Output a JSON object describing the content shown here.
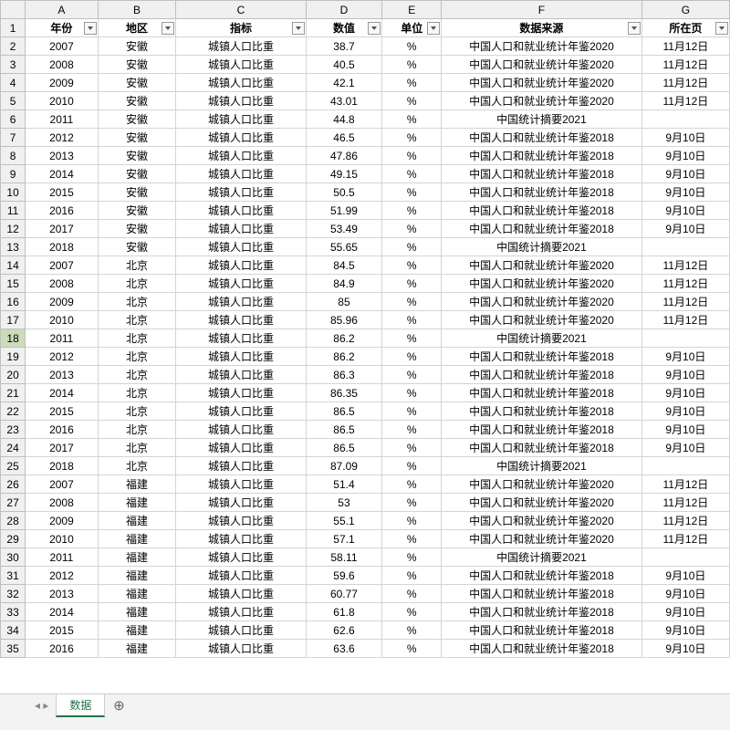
{
  "sheet": {
    "name": "数据",
    "column_letters": [
      "A",
      "B",
      "C",
      "D",
      "E",
      "F",
      "G"
    ],
    "headers": [
      "年份",
      "地区",
      "指标",
      "数值",
      "单位",
      "数据来源",
      "所在页"
    ],
    "selected_row_index": 18,
    "rows": [
      {
        "n": 2,
        "A": "2007",
        "B": "安徽",
        "C": "城镇人口比重",
        "D": "38.7",
        "E": "%",
        "F": "中国人口和就业统计年鉴2020",
        "G": "11月12日"
      },
      {
        "n": 3,
        "A": "2008",
        "B": "安徽",
        "C": "城镇人口比重",
        "D": "40.5",
        "E": "%",
        "F": "中国人口和就业统计年鉴2020",
        "G": "11月12日"
      },
      {
        "n": 4,
        "A": "2009",
        "B": "安徽",
        "C": "城镇人口比重",
        "D": "42.1",
        "E": "%",
        "F": "中国人口和就业统计年鉴2020",
        "G": "11月12日"
      },
      {
        "n": 5,
        "A": "2010",
        "B": "安徽",
        "C": "城镇人口比重",
        "D": "43.01",
        "E": "%",
        "F": "中国人口和就业统计年鉴2020",
        "G": "11月12日"
      },
      {
        "n": 6,
        "A": "2011",
        "B": "安徽",
        "C": "城镇人口比重",
        "D": "44.8",
        "E": "%",
        "F": "中国统计摘要2021",
        "G": ""
      },
      {
        "n": 7,
        "A": "2012",
        "B": "安徽",
        "C": "城镇人口比重",
        "D": "46.5",
        "E": "%",
        "F": "中国人口和就业统计年鉴2018",
        "G": "9月10日"
      },
      {
        "n": 8,
        "A": "2013",
        "B": "安徽",
        "C": "城镇人口比重",
        "D": "47.86",
        "E": "%",
        "F": "中国人口和就业统计年鉴2018",
        "G": "9月10日"
      },
      {
        "n": 9,
        "A": "2014",
        "B": "安徽",
        "C": "城镇人口比重",
        "D": "49.15",
        "E": "%",
        "F": "中国人口和就业统计年鉴2018",
        "G": "9月10日"
      },
      {
        "n": 10,
        "A": "2015",
        "B": "安徽",
        "C": "城镇人口比重",
        "D": "50.5",
        "E": "%",
        "F": "中国人口和就业统计年鉴2018",
        "G": "9月10日"
      },
      {
        "n": 11,
        "A": "2016",
        "B": "安徽",
        "C": "城镇人口比重",
        "D": "51.99",
        "E": "%",
        "F": "中国人口和就业统计年鉴2018",
        "G": "9月10日"
      },
      {
        "n": 12,
        "A": "2017",
        "B": "安徽",
        "C": "城镇人口比重",
        "D": "53.49",
        "E": "%",
        "F": "中国人口和就业统计年鉴2018",
        "G": "9月10日"
      },
      {
        "n": 13,
        "A": "2018",
        "B": "安徽",
        "C": "城镇人口比重",
        "D": "55.65",
        "E": "%",
        "F": "中国统计摘要2021",
        "G": ""
      },
      {
        "n": 14,
        "A": "2007",
        "B": "北京",
        "C": "城镇人口比重",
        "D": "84.5",
        "E": "%",
        "F": "中国人口和就业统计年鉴2020",
        "G": "11月12日"
      },
      {
        "n": 15,
        "A": "2008",
        "B": "北京",
        "C": "城镇人口比重",
        "D": "84.9",
        "E": "%",
        "F": "中国人口和就业统计年鉴2020",
        "G": "11月12日"
      },
      {
        "n": 16,
        "A": "2009",
        "B": "北京",
        "C": "城镇人口比重",
        "D": "85",
        "E": "%",
        "F": "中国人口和就业统计年鉴2020",
        "G": "11月12日"
      },
      {
        "n": 17,
        "A": "2010",
        "B": "北京",
        "C": "城镇人口比重",
        "D": "85.96",
        "E": "%",
        "F": "中国人口和就业统计年鉴2020",
        "G": "11月12日"
      },
      {
        "n": 18,
        "A": "2011",
        "B": "北京",
        "C": "城镇人口比重",
        "D": "86.2",
        "E": "%",
        "F": "中国统计摘要2021",
        "G": ""
      },
      {
        "n": 19,
        "A": "2012",
        "B": "北京",
        "C": "城镇人口比重",
        "D": "86.2",
        "E": "%",
        "F": "中国人口和就业统计年鉴2018",
        "G": "9月10日"
      },
      {
        "n": 20,
        "A": "2013",
        "B": "北京",
        "C": "城镇人口比重",
        "D": "86.3",
        "E": "%",
        "F": "中国人口和就业统计年鉴2018",
        "G": "9月10日"
      },
      {
        "n": 21,
        "A": "2014",
        "B": "北京",
        "C": "城镇人口比重",
        "D": "86.35",
        "E": "%",
        "F": "中国人口和就业统计年鉴2018",
        "G": "9月10日"
      },
      {
        "n": 22,
        "A": "2015",
        "B": "北京",
        "C": "城镇人口比重",
        "D": "86.5",
        "E": "%",
        "F": "中国人口和就业统计年鉴2018",
        "G": "9月10日"
      },
      {
        "n": 23,
        "A": "2016",
        "B": "北京",
        "C": "城镇人口比重",
        "D": "86.5",
        "E": "%",
        "F": "中国人口和就业统计年鉴2018",
        "G": "9月10日"
      },
      {
        "n": 24,
        "A": "2017",
        "B": "北京",
        "C": "城镇人口比重",
        "D": "86.5",
        "E": "%",
        "F": "中国人口和就业统计年鉴2018",
        "G": "9月10日"
      },
      {
        "n": 25,
        "A": "2018",
        "B": "北京",
        "C": "城镇人口比重",
        "D": "87.09",
        "E": "%",
        "F": "中国统计摘要2021",
        "G": ""
      },
      {
        "n": 26,
        "A": "2007",
        "B": "福建",
        "C": "城镇人口比重",
        "D": "51.4",
        "E": "%",
        "F": "中国人口和就业统计年鉴2020",
        "G": "11月12日"
      },
      {
        "n": 27,
        "A": "2008",
        "B": "福建",
        "C": "城镇人口比重",
        "D": "53",
        "E": "%",
        "F": "中国人口和就业统计年鉴2020",
        "G": "11月12日"
      },
      {
        "n": 28,
        "A": "2009",
        "B": "福建",
        "C": "城镇人口比重",
        "D": "55.1",
        "E": "%",
        "F": "中国人口和就业统计年鉴2020",
        "G": "11月12日"
      },
      {
        "n": 29,
        "A": "2010",
        "B": "福建",
        "C": "城镇人口比重",
        "D": "57.1",
        "E": "%",
        "F": "中国人口和就业统计年鉴2020",
        "G": "11月12日"
      },
      {
        "n": 30,
        "A": "2011",
        "B": "福建",
        "C": "城镇人口比重",
        "D": "58.11",
        "E": "%",
        "F": "中国统计摘要2021",
        "G": ""
      },
      {
        "n": 31,
        "A": "2012",
        "B": "福建",
        "C": "城镇人口比重",
        "D": "59.6",
        "E": "%",
        "F": "中国人口和就业统计年鉴2018",
        "G": "9月10日"
      },
      {
        "n": 32,
        "A": "2013",
        "B": "福建",
        "C": "城镇人口比重",
        "D": "60.77",
        "E": "%",
        "F": "中国人口和就业统计年鉴2018",
        "G": "9月10日"
      },
      {
        "n": 33,
        "A": "2014",
        "B": "福建",
        "C": "城镇人口比重",
        "D": "61.8",
        "E": "%",
        "F": "中国人口和就业统计年鉴2018",
        "G": "9月10日"
      },
      {
        "n": 34,
        "A": "2015",
        "B": "福建",
        "C": "城镇人口比重",
        "D": "62.6",
        "E": "%",
        "F": "中国人口和就业统计年鉴2018",
        "G": "9月10日"
      },
      {
        "n": 35,
        "A": "2016",
        "B": "福建",
        "C": "城镇人口比重",
        "D": "63.6",
        "E": "%",
        "F": "中国人口和就业统计年鉴2018",
        "G": "9月10日"
      }
    ]
  },
  "colors": {
    "grid_line": "#d4d4d4",
    "header_bg": "#f0f0f0",
    "accent": "#217346"
  }
}
